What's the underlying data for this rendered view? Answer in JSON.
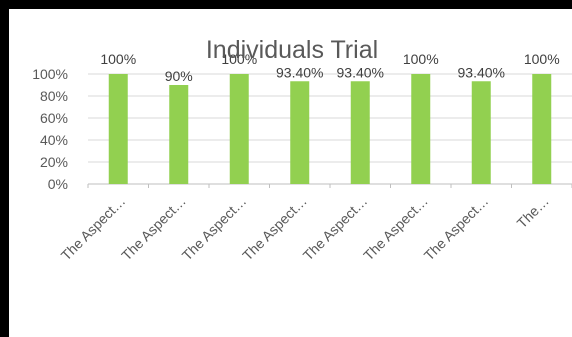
{
  "chart_data": {
    "type": "bar",
    "title": "Individuals Trial",
    "categories": [
      "The Aspect…",
      "The Aspect…",
      "The Aspect…",
      "The Aspect…",
      "The Aspect…",
      "The Aspect…",
      "The Aspect…",
      "The…"
    ],
    "values": [
      100,
      90,
      100,
      93.4,
      93.4,
      100,
      93.4,
      100
    ],
    "data_labels": [
      "100%",
      "90%",
      "100%",
      "93.40%",
      "93.40%",
      "100%",
      "93.40%",
      "100%"
    ],
    "y_ticks": [
      "0%",
      "20%",
      "40%",
      "60%",
      "80%",
      "100%"
    ],
    "ylim": [
      0,
      100
    ],
    "grid": true,
    "legend": "none",
    "colors": {
      "bar": "#92d050",
      "grid": "#d9d9d9",
      "text": "#595959"
    }
  }
}
